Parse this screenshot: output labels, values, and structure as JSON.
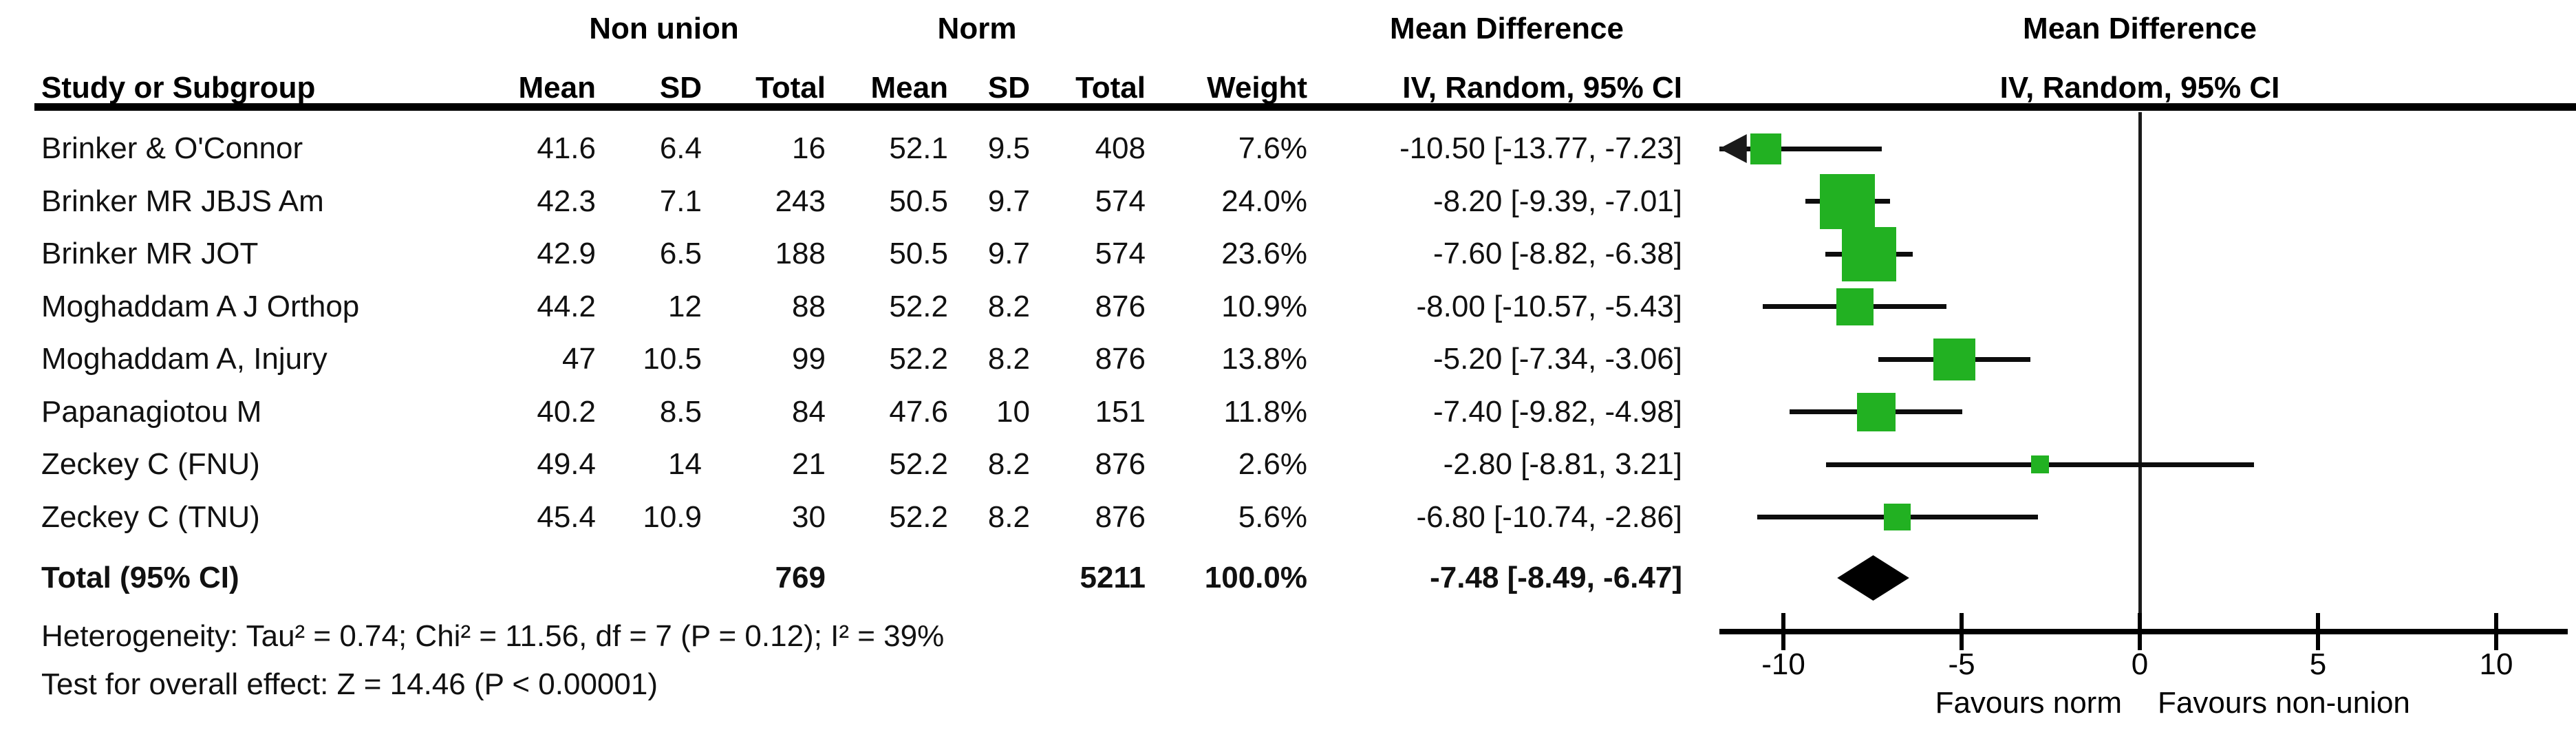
{
  "chart_data": {
    "type": "forest",
    "effect_measure": "Mean Difference",
    "method": "IV, Random, 95% CI",
    "group1": "Non union",
    "group2": "Norm",
    "columns": {
      "study": "Study or Subgroup",
      "mean": "Mean",
      "sd": "SD",
      "total": "Total",
      "weight": "Weight"
    },
    "studies": [
      {
        "name": "Brinker & O'Connor",
        "g1_mean": "41.6",
        "g1_sd": "6.4",
        "g1_total": "16",
        "g2_mean": "52.1",
        "g2_sd": "9.5",
        "g2_total": "408",
        "weight": "7.6%",
        "ci_text": "-10.50 [-13.77, -7.23]",
        "est": -10.5,
        "lo": -13.77,
        "hi": -7.23
      },
      {
        "name": "Brinker MR JBJS Am",
        "g1_mean": "42.3",
        "g1_sd": "7.1",
        "g1_total": "243",
        "g2_mean": "50.5",
        "g2_sd": "9.7",
        "g2_total": "574",
        "weight": "24.0%",
        "ci_text": "-8.20 [-9.39, -7.01]",
        "est": -8.2,
        "lo": -9.39,
        "hi": -7.01
      },
      {
        "name": "Brinker MR JOT",
        "g1_mean": "42.9",
        "g1_sd": "6.5",
        "g1_total": "188",
        "g2_mean": "50.5",
        "g2_sd": "9.7",
        "g2_total": "574",
        "weight": "23.6%",
        "ci_text": "-7.60 [-8.82, -6.38]",
        "est": -7.6,
        "lo": -8.82,
        "hi": -6.38
      },
      {
        "name": "Moghaddam A J Orthop",
        "g1_mean": "44.2",
        "g1_sd": "12",
        "g1_total": "88",
        "g2_mean": "52.2",
        "g2_sd": "8.2",
        "g2_total": "876",
        "weight": "10.9%",
        "ci_text": "-8.00 [-10.57, -5.43]",
        "est": -8.0,
        "lo": -10.57,
        "hi": -5.43
      },
      {
        "name": "Moghaddam A, Injury",
        "g1_mean": "47",
        "g1_sd": "10.5",
        "g1_total": "99",
        "g2_mean": "52.2",
        "g2_sd": "8.2",
        "g2_total": "876",
        "weight": "13.8%",
        "ci_text": "-5.20 [-7.34, -3.06]",
        "est": -5.2,
        "lo": -7.34,
        "hi": -3.06
      },
      {
        "name": "Papanagiotou M",
        "g1_mean": "40.2",
        "g1_sd": "8.5",
        "g1_total": "84",
        "g2_mean": "47.6",
        "g2_sd": "10",
        "g2_total": "151",
        "weight": "11.8%",
        "ci_text": "-7.40 [-9.82, -4.98]",
        "est": -7.4,
        "lo": -9.82,
        "hi": -4.98
      },
      {
        "name": "Zeckey C (FNU)",
        "g1_mean": "49.4",
        "g1_sd": "14",
        "g1_total": "21",
        "g2_mean": "52.2",
        "g2_sd": "8.2",
        "g2_total": "876",
        "weight": "2.6%",
        "ci_text": "-2.80 [-8.81, 3.21]",
        "est": -2.8,
        "lo": -8.81,
        "hi": 3.21
      },
      {
        "name": "Zeckey C (TNU)",
        "g1_mean": "45.4",
        "g1_sd": "10.9",
        "g1_total": "30",
        "g2_mean": "52.2",
        "g2_sd": "8.2",
        "g2_total": "876",
        "weight": "5.6%",
        "ci_text": "-6.80 [-10.74, -2.86]",
        "est": -6.8,
        "lo": -10.74,
        "hi": -2.86
      }
    ],
    "total_row": {
      "label": "Total (95% CI)",
      "g1_total": "769",
      "g2_total": "5211",
      "weight": "100.0%",
      "ci_text": "-7.48 [-8.49, -6.47]",
      "est": -7.48,
      "lo": -8.49,
      "hi": -6.47
    },
    "heterogeneity": "Heterogeneity: Tau² = 0.74; Chi² = 11.56, df = 7 (P = 0.12); I² = 39%",
    "overall_effect": "Test for overall effect: Z = 14.46 (P < 0.00001)",
    "x_axis": {
      "ticks": [
        -10,
        -5,
        0,
        5,
        10
      ],
      "min": -11.8,
      "max": 12.0,
      "favours_left": "Favours norm",
      "favours_right": "Favours non-union"
    },
    "colors": {
      "marker_green": "#22b122",
      "line_black": "#000000"
    }
  }
}
